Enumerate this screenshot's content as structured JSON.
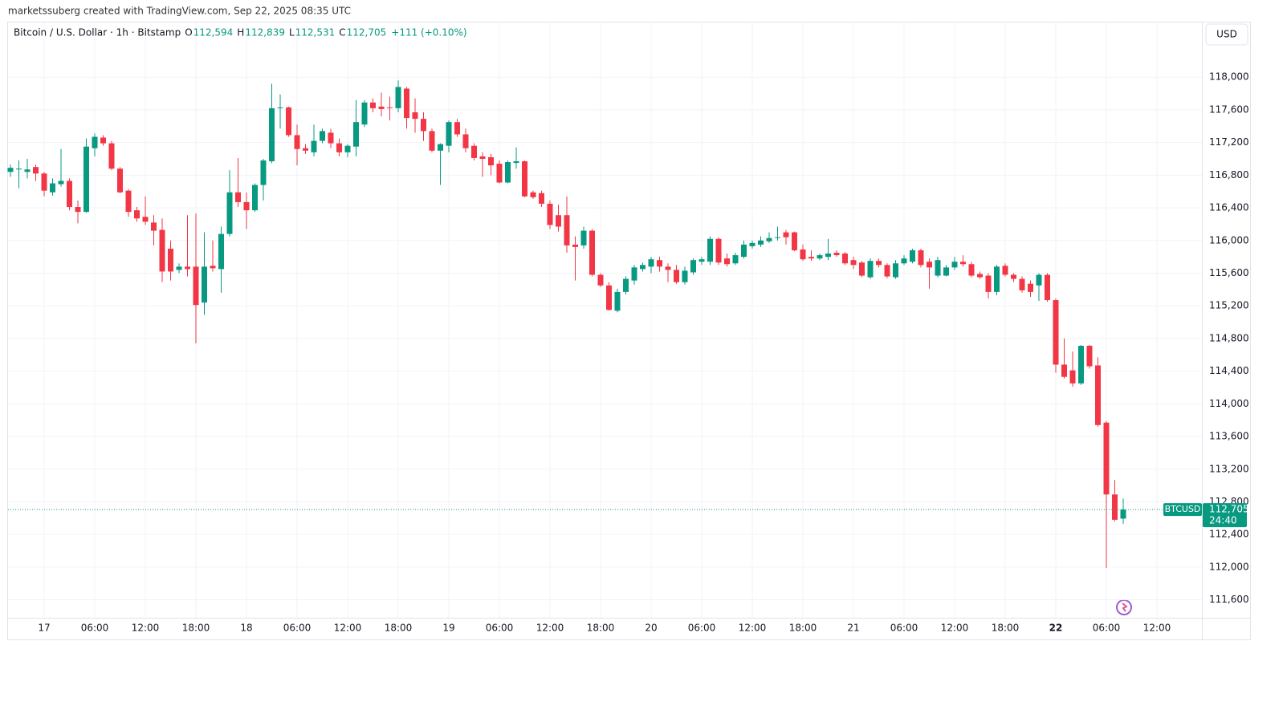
{
  "header": {
    "credit": "marketssuberg created with TradingView.com, Sep 22, 2025 08:35 UTC"
  },
  "chart_data": {
    "type": "candlestick",
    "legend": {
      "symbol": "Bitcoin / U.S. Dollar · 1h · Bitstamp",
      "fields": [
        {
          "key": "O",
          "value": "112,594"
        },
        {
          "key": "H",
          "value": "112,839"
        },
        {
          "key": "L",
          "value": "112,531"
        },
        {
          "key": "C",
          "value": "112,705"
        }
      ],
      "change": "+111 (+0.10%)"
    },
    "currency": "USD",
    "up_color": "#089981",
    "down_color": "#f23645",
    "categories": [
      "16 20:00",
      "16 21:00",
      "16 22:00",
      "16 23:00",
      "17 00:00",
      "17 01:00",
      "17 02:00",
      "17 03:00",
      "17 04:00",
      "17 05:00",
      "17 06:00",
      "17 07:00",
      "17 08:00",
      "17 09:00",
      "17 10:00",
      "17 11:00",
      "17 12:00",
      "17 13:00",
      "17 14:00",
      "17 15:00",
      "17 16:00",
      "17 17:00",
      "17 18:00",
      "17 19:00",
      "17 20:00",
      "17 21:00",
      "17 22:00",
      "17 23:00",
      "18 00:00",
      "18 01:00",
      "18 02:00",
      "18 03:00",
      "18 04:00",
      "18 05:00",
      "18 06:00",
      "18 07:00",
      "18 08:00",
      "18 09:00",
      "18 10:00",
      "18 11:00",
      "18 12:00",
      "18 13:00",
      "18 14:00",
      "18 15:00",
      "18 16:00",
      "18 17:00",
      "18 18:00",
      "18 19:00",
      "18 20:00",
      "18 21:00",
      "18 22:00",
      "18 23:00",
      "19 00:00",
      "19 01:00",
      "19 02:00",
      "19 03:00",
      "19 04:00",
      "19 05:00",
      "19 06:00",
      "19 07:00",
      "19 08:00",
      "19 09:00",
      "19 10:00",
      "19 11:00",
      "19 12:00",
      "19 13:00",
      "19 14:00",
      "19 15:00",
      "19 16:00",
      "19 17:00",
      "19 18:00",
      "19 19:00",
      "19 20:00",
      "19 21:00",
      "19 22:00",
      "19 23:00",
      "20 00:00",
      "20 01:00",
      "20 02:00",
      "20 03:00",
      "20 04:00",
      "20 05:00",
      "20 06:00",
      "20 07:00",
      "20 08:00",
      "20 09:00",
      "20 10:00",
      "20 11:00",
      "20 12:00",
      "20 13:00",
      "20 14:00",
      "20 15:00",
      "20 16:00",
      "20 17:00",
      "20 18:00",
      "20 19:00",
      "20 20:00",
      "20 21:00",
      "20 22:00",
      "20 23:00",
      "21 00:00",
      "21 01:00",
      "21 02:00",
      "21 03:00",
      "21 04:00",
      "21 05:00",
      "21 06:00",
      "21 07:00",
      "21 08:00",
      "21 09:00",
      "21 10:00",
      "21 11:00",
      "21 12:00",
      "21 13:00",
      "21 14:00",
      "21 15:00",
      "21 16:00",
      "21 17:00",
      "21 18:00",
      "21 19:00",
      "21 20:00",
      "21 21:00",
      "21 22:00",
      "21 23:00",
      "22 00:00",
      "22 01:00",
      "22 02:00",
      "22 03:00",
      "22 04:00",
      "22 05:00",
      "22 06:00",
      "22 07:00",
      "22 08:00",
      "22 09:00",
      "22 10:00",
      "22 11:00",
      "22 12:00",
      "22 13:00",
      "22 14:00",
      "22 15:00",
      "22 16:00",
      "22 17:00"
    ],
    "open": [
      116840,
      116870,
      116840,
      116900,
      116820,
      116590,
      116690,
      116730,
      116410,
      116350,
      117130,
      117260,
      117190,
      116880,
      116610,
      116370,
      116290,
      116220,
      116130,
      115900,
      115640,
      115680,
      115680,
      115240,
      115690,
      115650,
      116080,
      116590,
      116470,
      116370,
      116680,
      116970,
      117620,
      117630,
      117290,
      117130,
      117080,
      117220,
      117320,
      117190,
      117080,
      117150,
      117420,
      117690,
      117640,
      117630,
      117620,
      117860,
      117570,
      117490,
      117340,
      117100,
      117160,
      117450,
      117300,
      117160,
      117030,
      117020,
      116940,
      116710,
      116950,
      116970,
      116590,
      116580,
      116450,
      116310,
      116310,
      115950,
      115940,
      116120,
      115580,
      115450,
      115140,
      115370,
      115510,
      115650,
      115680,
      115760,
      115680,
      115640,
      115490,
      115610,
      115740,
      115740,
      116020,
      115780,
      115720,
      115800,
      115930,
      115950,
      115990,
      116030,
      116100,
      116100,
      115890,
      115800,
      115780,
      115800,
      115850,
      115840,
      115760,
      115730,
      115550,
      115750,
      115700,
      115550,
      115720,
      115740,
      115880,
      115740,
      115570,
      115570,
      115670,
      115740,
      115710,
      115590,
      115570,
      115370,
      115690,
      115580,
      115530,
      115470,
      115450,
      115580,
      115270,
      114480,
      114410,
      114250,
      114710,
      114470,
      113770,
      112890,
      112594,
      null,
      null,
      null,
      null,
      null,
      null,
      null,
      null,
      null
    ],
    "high": [
      116930,
      116980,
      117000,
      116930,
      116840,
      116760,
      117120,
      116760,
      116490,
      117250,
      117310,
      117290,
      117220,
      116900,
      116630,
      116410,
      116540,
      116310,
      116270,
      116000,
      115720,
      116310,
      116330,
      116100,
      116000,
      116170,
      116860,
      117010,
      116590,
      116700,
      117000,
      117920,
      117790,
      117640,
      117420,
      117180,
      117420,
      117370,
      117370,
      117250,
      117180,
      117720,
      117720,
      117740,
      117810,
      117760,
      117960,
      117880,
      117740,
      117570,
      117370,
      117190,
      117470,
      117490,
      117370,
      117190,
      117080,
      117060,
      116980,
      116980,
      117140,
      116980,
      116610,
      116610,
      116490,
      116440,
      116540,
      116050,
      116170,
      116140,
      115600,
      115490,
      115410,
      115560,
      115700,
      115730,
      115800,
      115800,
      115720,
      115700,
      115680,
      115780,
      115800,
      116050,
      116040,
      115840,
      115850,
      116000,
      116000,
      116050,
      116100,
      116170,
      116130,
      116110,
      115950,
      115880,
      115840,
      116020,
      115880,
      115860,
      115800,
      115750,
      115780,
      115780,
      115720,
      115760,
      115820,
      115900,
      115900,
      115780,
      115800,
      115700,
      115800,
      115820,
      115740,
      115620,
      115600,
      115700,
      115720,
      115600,
      115560,
      115510,
      115600,
      115600,
      115290,
      114800,
      114640,
      114720,
      114720,
      114570,
      113790,
      113070,
      112839,
      null,
      null,
      null,
      null,
      null,
      null,
      null,
      null,
      null
    ],
    "low": [
      116780,
      116640,
      116760,
      116730,
      116540,
      116550,
      116660,
      116370,
      116210,
      116340,
      117030,
      117160,
      116860,
      116580,
      116290,
      116230,
      116190,
      115940,
      115490,
      115510,
      115600,
      115560,
      114740,
      115090,
      115620,
      115360,
      116050,
      116410,
      116140,
      116350,
      116490,
      116950,
      117370,
      117270,
      116920,
      117060,
      117030,
      117190,
      117130,
      117030,
      117020,
      117030,
      117390,
      117570,
      117520,
      117470,
      117570,
      117370,
      117320,
      117220,
      117080,
      116680,
      117080,
      117270,
      117080,
      116980,
      116780,
      116800,
      116700,
      116700,
      116880,
      116530,
      116510,
      116410,
      116140,
      116110,
      115850,
      115510,
      115900,
      115560,
      115430,
      115140,
      115120,
      115340,
      115460,
      115620,
      115600,
      115620,
      115490,
      115470,
      115460,
      115580,
      115700,
      115700,
      115700,
      115680,
      115700,
      115780,
      115900,
      115920,
      115970,
      116000,
      115950,
      115870,
      115750,
      115750,
      115760,
      115760,
      115800,
      115700,
      115650,
      115550,
      115530,
      115670,
      115540,
      115530,
      115700,
      115720,
      115670,
      115410,
      115550,
      115560,
      115640,
      115680,
      115550,
      115530,
      115290,
      115330,
      115560,
      115490,
      115360,
      115310,
      115260,
      115250,
      114380,
      114310,
      114210,
      114230,
      114430,
      113720,
      111990,
      112560,
      112531,
      null,
      null,
      null,
      null,
      null,
      null,
      null,
      null,
      null
    ],
    "close": [
      116890,
      116880,
      116870,
      116820,
      116610,
      116700,
      116730,
      116410,
      116350,
      117150,
      117270,
      117190,
      116880,
      116590,
      116350,
      116270,
      116230,
      116120,
      115620,
      115620,
      115680,
      115650,
      115210,
      115680,
      115660,
      116080,
      116590,
      116470,
      116370,
      116680,
      116980,
      117620,
      117630,
      117290,
      117120,
      117100,
      117220,
      117340,
      117190,
      117080,
      117160,
      117450,
      117690,
      117620,
      117610,
      117620,
      117880,
      117500,
      117490,
      117340,
      117100,
      117180,
      117450,
      117300,
      117130,
      117010,
      117000,
      116920,
      116710,
      116960,
      116970,
      116540,
      116530,
      116450,
      116190,
      116170,
      115940,
      115920,
      116120,
      115580,
      115450,
      115150,
      115370,
      115530,
      115670,
      115700,
      115770,
      115680,
      115640,
      115490,
      115630,
      115760,
      115770,
      116020,
      115730,
      115710,
      115820,
      115950,
      115970,
      116000,
      116030,
      116040,
      116040,
      115880,
      115770,
      115780,
      115820,
      115840,
      115820,
      115720,
      115700,
      115570,
      115750,
      115700,
      115560,
      115720,
      115780,
      115880,
      115700,
      115670,
      115760,
      115670,
      115740,
      115710,
      115570,
      115550,
      115370,
      115680,
      115580,
      115530,
      115390,
      115370,
      115580,
      115270,
      114480,
      114330,
      114250,
      114710,
      114460,
      113740,
      112890,
      112580,
      112705,
      null,
      null,
      null,
      null,
      null,
      null,
      null,
      null,
      null
    ],
    "ylim": [
      111380,
      118670
    ],
    "yticks": [
      {
        "value": 111600,
        "label": "111,600"
      },
      {
        "value": 112000,
        "label": "112,000"
      },
      {
        "value": 112400,
        "label": "112,400"
      },
      {
        "value": 112800,
        "label": "112,800"
      },
      {
        "value": 113200,
        "label": "113,200"
      },
      {
        "value": 113600,
        "label": "113,600"
      },
      {
        "value": 114000,
        "label": "114,000"
      },
      {
        "value": 114400,
        "label": "114,400"
      },
      {
        "value": 114800,
        "label": "114,800"
      },
      {
        "value": 115200,
        "label": "115,200"
      },
      {
        "value": 115600,
        "label": "115,600"
      },
      {
        "value": 116000,
        "label": "116,000"
      },
      {
        "value": 116400,
        "label": "116,400"
      },
      {
        "value": 116800,
        "label": "116,800"
      },
      {
        "value": 117200,
        "label": "117,200"
      },
      {
        "value": 117600,
        "label": "117,600"
      },
      {
        "value": 118000,
        "label": "118,000"
      }
    ],
    "xticks": [
      {
        "value": "17 00:00",
        "label": "17"
      },
      {
        "value": "17 06:00",
        "label": "06:00"
      },
      {
        "value": "17 12:00",
        "label": "12:00"
      },
      {
        "value": "17 18:00",
        "label": "18:00"
      },
      {
        "value": "18 00:00",
        "label": "18"
      },
      {
        "value": "18 06:00",
        "label": "06:00"
      },
      {
        "value": "18 12:00",
        "label": "12:00"
      },
      {
        "value": "18 18:00",
        "label": "18:00"
      },
      {
        "value": "19 00:00",
        "label": "19"
      },
      {
        "value": "19 06:00",
        "label": "06:00"
      },
      {
        "value": "19 12:00",
        "label": "12:00"
      },
      {
        "value": "19 18:00",
        "label": "18:00"
      },
      {
        "value": "20 00:00",
        "label": "20"
      },
      {
        "value": "20 06:00",
        "label": "06:00"
      },
      {
        "value": "20 12:00",
        "label": "12:00"
      },
      {
        "value": "20 18:00",
        "label": "18:00"
      },
      {
        "value": "21 00:00",
        "label": "21"
      },
      {
        "value": "21 06:00",
        "label": "06:00"
      },
      {
        "value": "21 12:00",
        "label": "12:00"
      },
      {
        "value": "21 18:00",
        "label": "18:00"
      },
      {
        "value": "22 00:00",
        "label": "22",
        "bold": true
      },
      {
        "value": "22 06:00",
        "label": "06:00"
      },
      {
        "value": "22 12:00",
        "label": "12:00"
      }
    ],
    "grid": true,
    "price_tag": {
      "symbol": "BTCUSD",
      "value": 112705,
      "label": "112,705",
      "countdown": "24:40"
    }
  }
}
